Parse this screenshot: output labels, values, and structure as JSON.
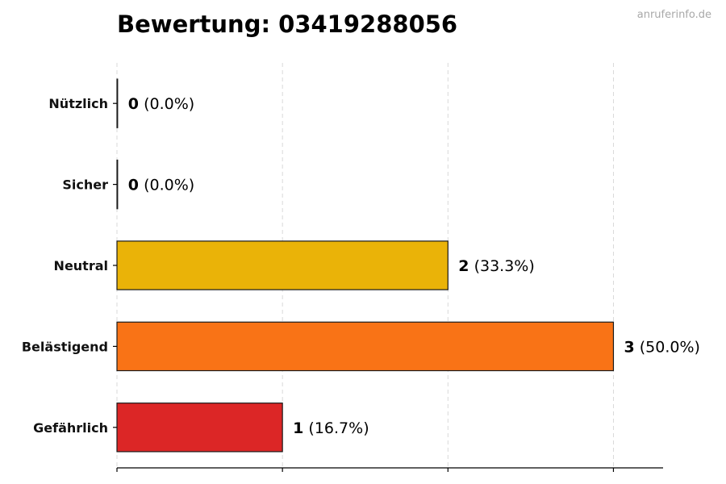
{
  "title": "Bewertung: 03419288056",
  "watermark": "anruferinfo.de",
  "chart_data": {
    "type": "bar",
    "orientation": "horizontal",
    "title": "Bewertung: 03419288056",
    "categories": [
      "Nützlich",
      "Sicher",
      "Neutral",
      "Belästigend",
      "Gefährlich"
    ],
    "values": [
      0,
      0,
      2,
      3,
      1
    ],
    "percent_labels": [
      "(0.0%)",
      "(0.0%)",
      "(33.3%)",
      "(50.0%)",
      "(16.7%)"
    ],
    "colors": [
      "#27ae60",
      "#2ecc71",
      "#eab308",
      "#f97316",
      "#dc2626"
    ],
    "xlim": [
      0,
      3.3
    ],
    "xlabel": "",
    "ylabel": "",
    "grid": "x",
    "legend": "none"
  }
}
